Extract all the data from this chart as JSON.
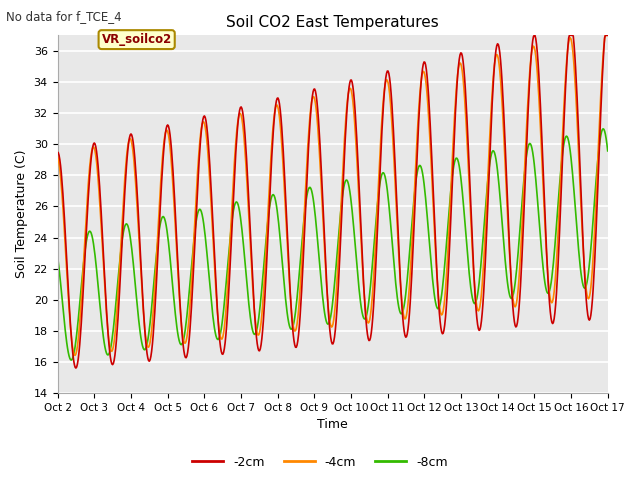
{
  "title": "Soil CO2 East Temperatures",
  "no_data_label": "No data for f_TCE_4",
  "annotation_box": "VR_soilco2",
  "xlabel": "Time",
  "ylabel": "Soil Temperature (C)",
  "ylim": [
    14,
    37
  ],
  "yticks": [
    14,
    16,
    18,
    20,
    22,
    24,
    26,
    28,
    30,
    32,
    34,
    36
  ],
  "x_labels": [
    "Oct 2",
    "Oct 3",
    "Oct 4",
    "Oct 5",
    "Oct 6",
    "Oct 7",
    "Oct 8",
    "Oct 9",
    "Oct 10",
    "Oct 11",
    "Oct 12",
    "Oct 13",
    "Oct 14",
    "Oct 15",
    "Oct 16",
    "Oct 17"
  ],
  "colors": {
    "neg2cm": "#cc0000",
    "neg4cm": "#ff8800",
    "neg8cm": "#33bb00"
  },
  "legend": [
    "-2cm",
    "-4cm",
    "-8cm"
  ],
  "fig_bg": "#ffffff",
  "plot_bg": "#e8e8e8"
}
